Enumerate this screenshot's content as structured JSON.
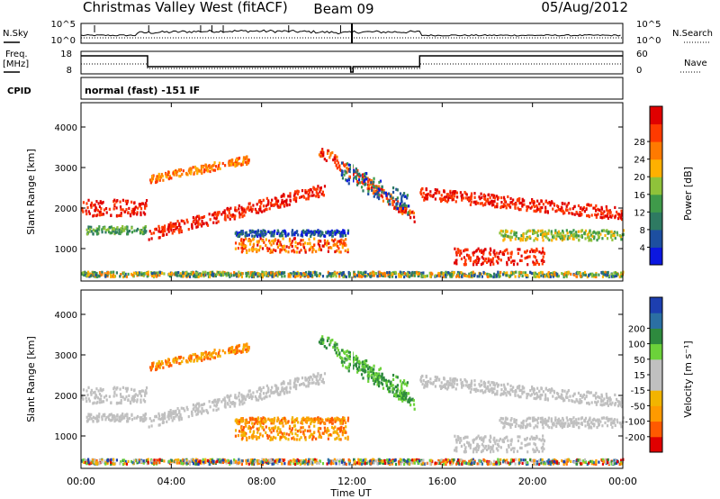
{
  "header": {
    "station": "Christmas Valley West (fitACF)",
    "beam": "Beam 09",
    "date": "05/Aug/2012"
  },
  "left_labels": {
    "nsky": "N.Sky",
    "freq": "Freq.",
    "freq_unit": "[MHz]",
    "cpid": "CPID"
  },
  "right_labels": {
    "nsearch": "N.Search",
    "nave": "Nave"
  },
  "cpid_text": "normal (fast) -151 IF",
  "colors": {
    "power_scale": [
      "#0b17e0",
      "#1d4fa0",
      "#2e7a62",
      "#3f9a4a",
      "#8fc23a",
      "#ffb000",
      "#ff7a00",
      "#ff3a00",
      "#e00000"
    ],
    "velocity_scale": [
      "#e00000",
      "#ff5a00",
      "#ff9a00",
      "#f2b400",
      "#c0c0c0",
      "#c0c0c0",
      "#6cd23a",
      "#2e8a3e",
      "#2b6fa3",
      "#1d3fb0"
    ],
    "ground_scatter": "#c0c0c0"
  },
  "chart_data": [
    {
      "type": "line",
      "name": "noise-panel",
      "y_tick_labels": [
        "10^5",
        "10^0"
      ],
      "right_tick_labels": [
        "10^5",
        "10^0"
      ]
    },
    {
      "type": "line",
      "name": "freq-nave-panel",
      "y_tick_labels": [
        "18",
        "8"
      ],
      "right_tick_labels": [
        "60",
        "0"
      ],
      "freq_segments": [
        {
          "start": "00:00",
          "end": "02:55",
          "value": "high"
        },
        {
          "start": "02:55",
          "end": "11:55",
          "value": "low"
        },
        {
          "start": "12:05",
          "end": "15:00",
          "value": "low"
        },
        {
          "start": "15:00",
          "end": "24:00",
          "value": "high"
        }
      ]
    },
    {
      "type": "heatmap",
      "name": "power-panel",
      "ylabel": "Slant Range [km]",
      "y_ticks": [
        1000,
        2000,
        3000,
        4000
      ],
      "ylim": [
        200,
        4600
      ],
      "colorbar": {
        "label": "Power [dB]",
        "ticks": [
          "4",
          "8",
          "12",
          "16",
          "20",
          "24",
          "28"
        ]
      }
    },
    {
      "type": "heatmap",
      "name": "velocity-panel",
      "ylabel": "Slant Range [km]",
      "y_ticks": [
        1000,
        2000,
        3000,
        4000
      ],
      "ylim": [
        200,
        4600
      ],
      "colorbar": {
        "label": "Velocity [m s⁻¹]",
        "ticks": [
          "-200",
          "-100",
          "-50",
          "-15",
          "15",
          "50",
          "100",
          "200"
        ]
      },
      "x_tick_labels": [
        "00:00",
        "04:00",
        "08:00",
        "12:00",
        "16:00",
        "20:00",
        "00:00"
      ],
      "xlabel": "Time UT",
      "xlim_hours": [
        0,
        24
      ]
    }
  ]
}
